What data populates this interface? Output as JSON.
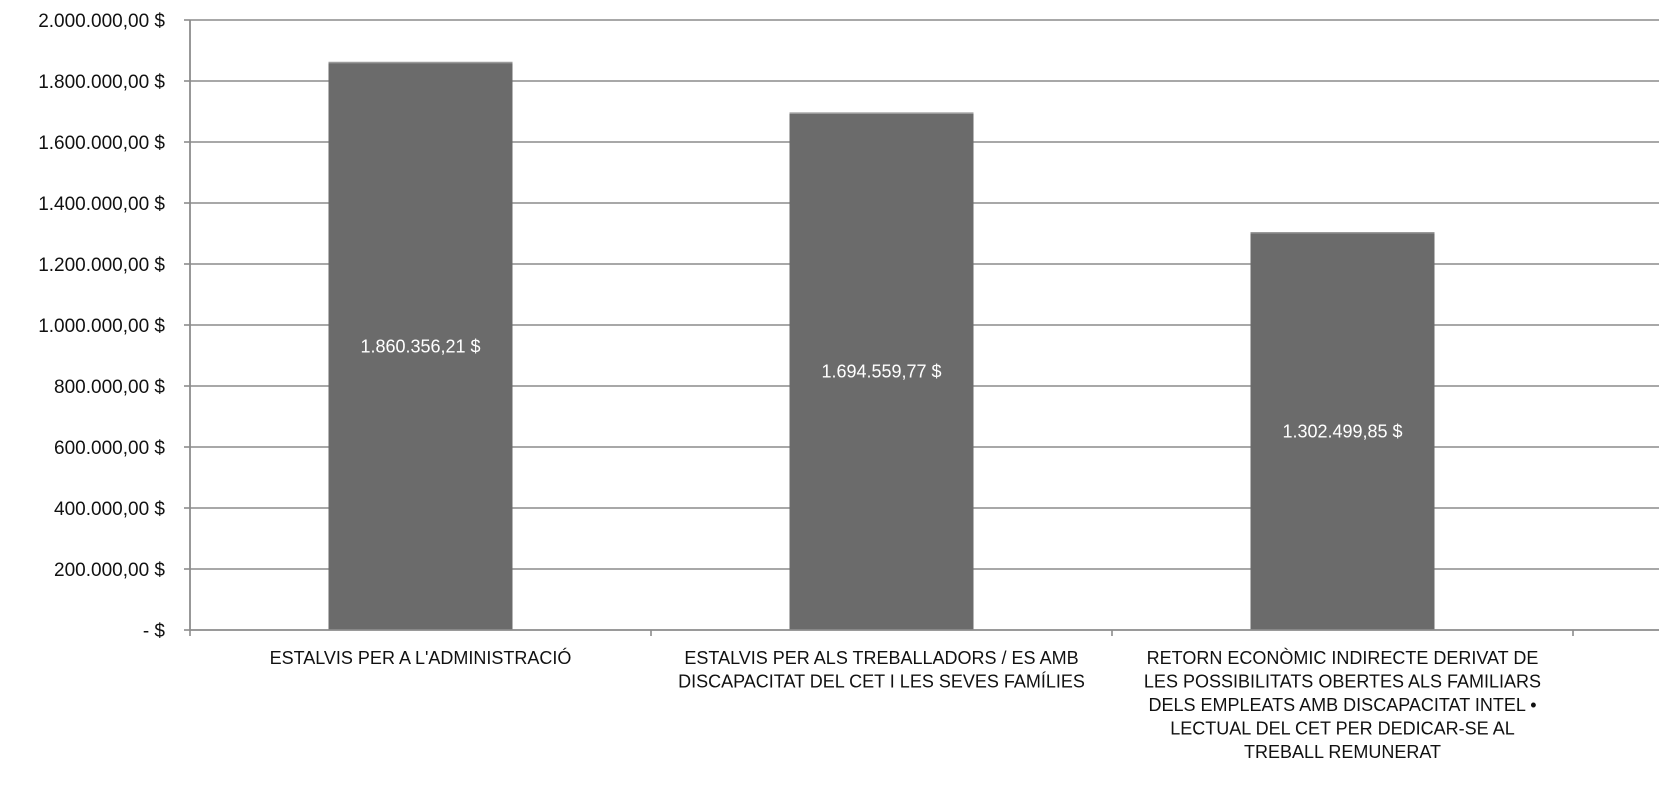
{
  "chart_data": {
    "type": "bar",
    "title": "",
    "xlabel": "",
    "ylabel": "",
    "ylim": [
      0,
      2000000
    ],
    "y_tick_values": [
      0,
      200000,
      400000,
      600000,
      800000,
      1000000,
      1200000,
      1400000,
      1600000,
      1800000,
      2000000
    ],
    "y_tick_labels": [
      "-  $",
      "200.000,00 $",
      "400.000,00 $",
      "600.000,00 $",
      "800.000,00 $",
      "1.000.000,00 $",
      "1.200.000,00 $",
      "1.400.000,00 $",
      "1.600.000,00 $",
      "1.800.000,00 $",
      "2.000.000,00 $"
    ],
    "categories": [
      [
        "ESTALVIS PER A L'ADMINISTRACIÓ"
      ],
      [
        "ESTALVIS PER ALS TREBALLADORS / ES AMB",
        "DISCAPACITAT DEL CET I LES SEVES FAMÍLIES"
      ],
      [
        "RETORN ECONÒMIC INDIRECTE DERIVAT DE",
        "LES POSSIBILITATS OBERTES ALS FAMILIARS",
        "DELS EMPLEATS AMB DISCAPACITAT INTEL •",
        "LECTUAL DEL CET PER DEDICAR-SE AL",
        "TREBALL REMUNERAT"
      ]
    ],
    "values": [
      1860356.21,
      1694559.77,
      1302499.85
    ],
    "data_labels": [
      "1.860.356,21 $",
      "1.694.559,77 $",
      "1.302.499,85 $"
    ],
    "grid": true,
    "legend": "none",
    "colors": {
      "bar": "#6b6b6b",
      "grid": "#8c8c8c",
      "axis": "#8c8c8c",
      "label_in_bar": "#ffffff"
    }
  }
}
